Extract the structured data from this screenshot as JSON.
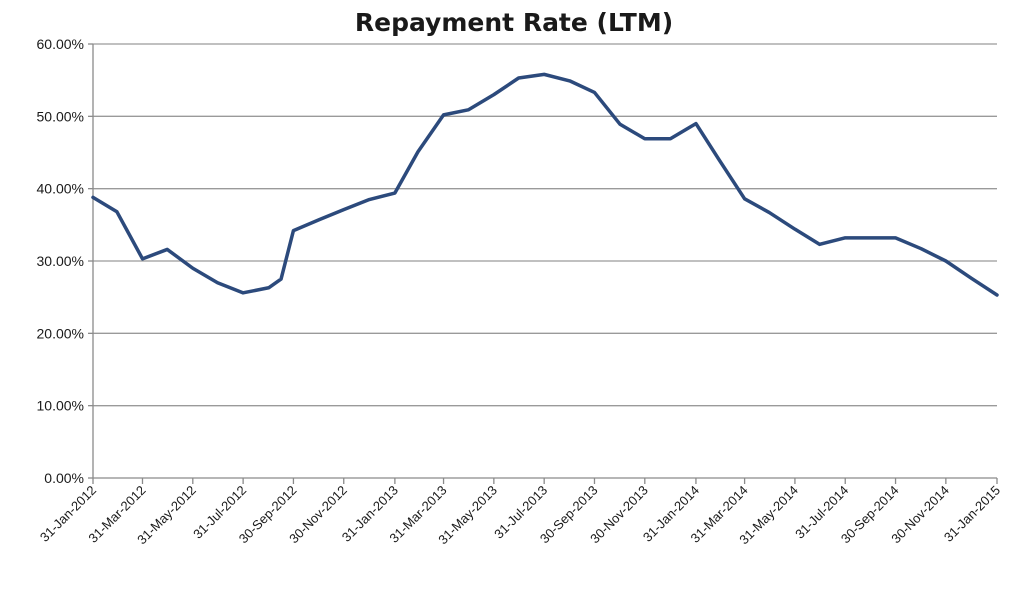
{
  "chart_data": {
    "type": "line",
    "title": "Repayment Rate (LTM)",
    "xlabel": "",
    "ylabel": "",
    "ylim": [
      0,
      60
    ],
    "y_ticks": [
      "0.00%",
      "10.00%",
      "20.00%",
      "30.00%",
      "40.00%",
      "50.00%",
      "60.00%"
    ],
    "y_tick_values": [
      0,
      10,
      20,
      30,
      40,
      50,
      60
    ],
    "x": [
      "2012-01-31",
      "2012-02-29",
      "2012-03-31",
      "2012-04-30",
      "2012-05-31",
      "2012-06-30",
      "2012-07-31",
      "2012-08-31",
      "2012-09-15",
      "2012-09-30",
      "2012-10-31",
      "2012-11-30",
      "2012-12-31",
      "2013-01-31",
      "2013-02-28",
      "2013-03-31",
      "2013-04-30",
      "2013-05-31",
      "2013-06-30",
      "2013-07-31",
      "2013-08-31",
      "2013-09-30",
      "2013-10-31",
      "2013-11-30",
      "2013-12-31",
      "2014-01-31",
      "2014-02-28",
      "2014-03-31",
      "2014-04-30",
      "2014-05-31",
      "2014-06-30",
      "2014-07-31",
      "2014-08-31",
      "2014-09-30",
      "2014-10-31",
      "2014-11-30",
      "2014-12-31",
      "2015-01-31"
    ],
    "series": [
      {
        "values": [
          38.8,
          36.8,
          30.3,
          31.6,
          29.0,
          27.0,
          25.6,
          26.3,
          27.5,
          34.2,
          35.7,
          37.1,
          38.5,
          39.4,
          45.1,
          50.2,
          50.9,
          53.0,
          55.3,
          55.8,
          54.9,
          53.3,
          48.9,
          46.9,
          46.9,
          49.0,
          44.0,
          38.6,
          36.7,
          34.4,
          32.3,
          33.2,
          33.2,
          33.2,
          31.7,
          30.0,
          27.6,
          25.3
        ]
      }
    ],
    "x_tick_labels": [
      "31-Jan-2012",
      "31-Mar-2012",
      "31-May-2012",
      "31-Jul-2012",
      "30-Sep-2012",
      "30-Nov-2012",
      "31-Jan-2013",
      "31-Mar-2013",
      "31-May-2013",
      "31-Jul-2013",
      "30-Sep-2013",
      "30-Nov-2013",
      "31-Jan-2014",
      "31-Mar-2014",
      "31-May-2014",
      "31-Jul-2014",
      "30-Sep-2014",
      "30-Nov-2014",
      "31-Jan-2015"
    ],
    "x_tick_dates": [
      "2012-01-31",
      "2012-03-31",
      "2012-05-31",
      "2012-07-31",
      "2012-09-30",
      "2012-11-30",
      "2013-01-31",
      "2013-03-31",
      "2013-05-31",
      "2013-07-31",
      "2013-09-30",
      "2013-11-30",
      "2014-01-31",
      "2014-03-31",
      "2014-05-31",
      "2014-07-31",
      "2014-09-30",
      "2014-11-30",
      "2015-01-31"
    ],
    "grid": true,
    "legend": "none",
    "line_color": "#2c4a7c",
    "grid_color": "#9a9a9a"
  }
}
